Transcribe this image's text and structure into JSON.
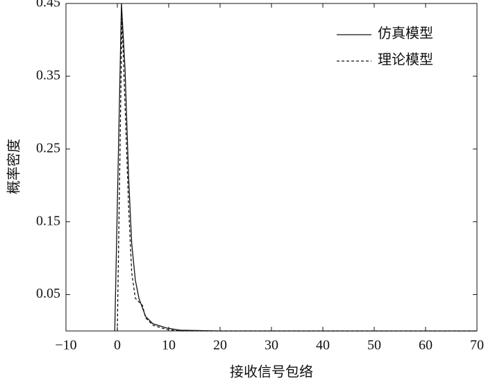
{
  "chart_data": {
    "type": "line",
    "xlabel": "接收信号包络",
    "ylabel": "概率密度",
    "xlim": [
      -10,
      70
    ],
    "ylim": [
      0,
      0.45
    ],
    "xticks": [
      {
        "value": -10,
        "label": "−10"
      },
      0,
      10,
      20,
      30,
      40,
      50,
      60,
      70
    ],
    "yticks": [
      0.05,
      0.15,
      0.25,
      0.35,
      0.45
    ],
    "legend": "upper right",
    "series": [
      {
        "name": "仿真模型",
        "color": "#111111",
        "dash": "solid",
        "x": [
          -0.5,
          0.8,
          1.5,
          2.2,
          2.8,
          3.5,
          4.2,
          5.5,
          6.9,
          9.6,
          12.3,
          20,
          70
        ],
        "values": [
          0,
          0.45,
          0.36,
          0.21,
          0.12,
          0.07,
          0.045,
          0.02,
          0.01,
          0.004,
          0.001,
          0,
          0
        ]
      },
      {
        "name": "理论模型",
        "color": "#111111",
        "dash": "dashed",
        "x": [
          0,
          0.9,
          1.5,
          2.2,
          2.8,
          3.5,
          4.9,
          5.5,
          6.9,
          9.6,
          12.3,
          70
        ],
        "values": [
          0,
          0.43,
          0.31,
          0.17,
          0.08,
          0.045,
          0.035,
          0.018,
          0.008,
          0.002,
          0,
          0
        ]
      }
    ]
  }
}
